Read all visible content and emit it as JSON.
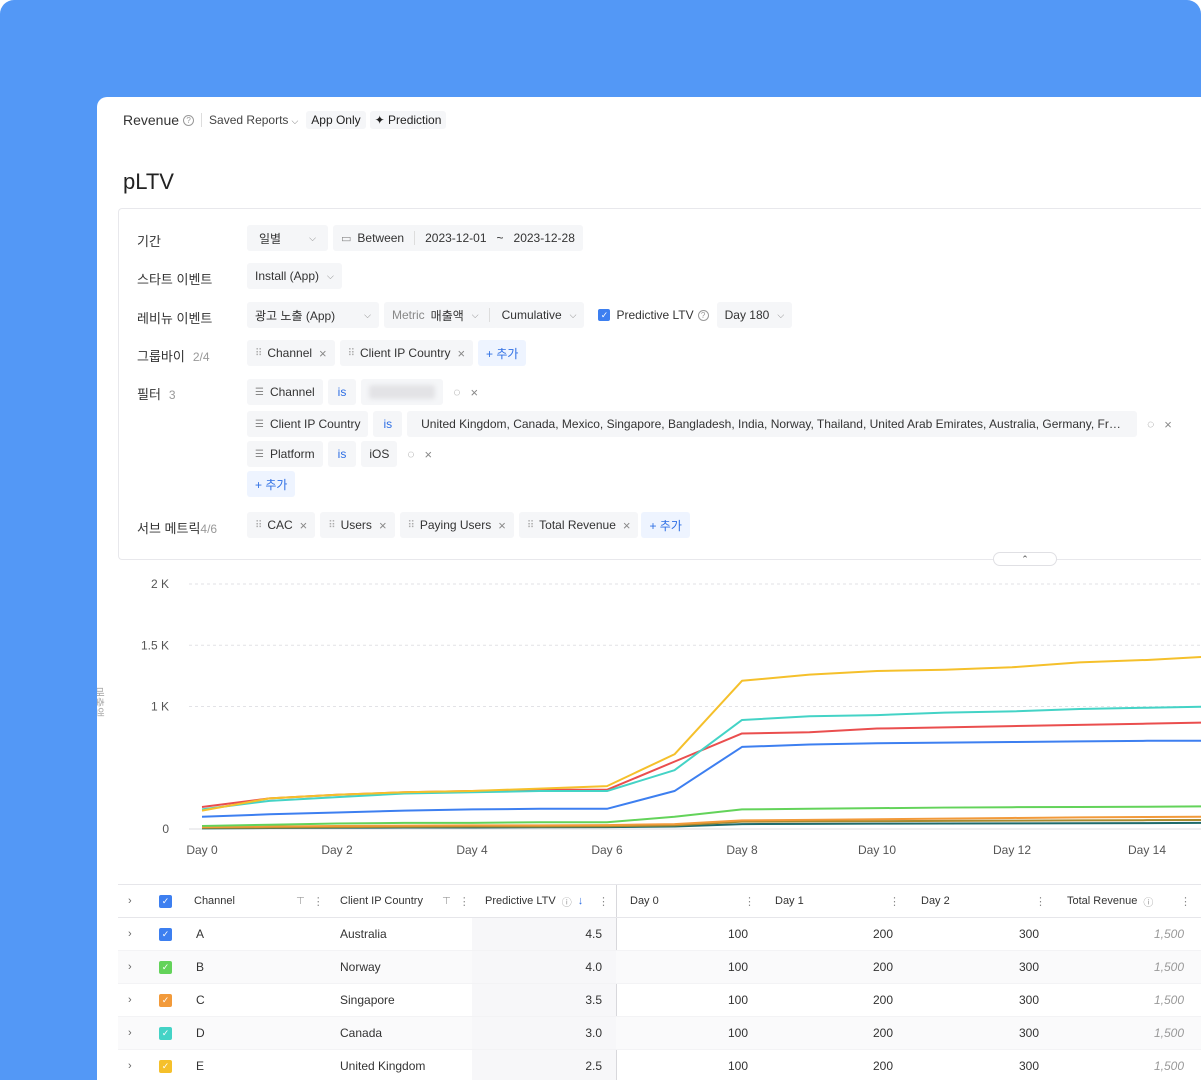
{
  "header": {
    "title": "Revenue",
    "saved_reports": "Saved Reports",
    "app_only": "App Only",
    "prediction": "Prediction"
  },
  "page_title": "pLTV",
  "settings": {
    "period": {
      "label": "기간",
      "granularity": "일별",
      "between": "Between",
      "start": "2023-12-01",
      "tilde": "~",
      "end": "2023-12-28"
    },
    "start_event": {
      "label": "스타트 이벤트",
      "value": "Install (App)"
    },
    "revenue_event": {
      "label": "레비뉴 이벤트",
      "event": "광고 노출 (App)",
      "metric_label": "Metric",
      "metric_value": "매출액",
      "mode": "Cumulative",
      "predictive": "Predictive LTV",
      "day": "Day 180"
    },
    "group_by": {
      "label": "그룹바이",
      "count": "2/4",
      "items": [
        "Channel",
        "Client IP Country"
      ],
      "add": "+ 추가"
    },
    "filter": {
      "label": "필터",
      "count": "3",
      "items": [
        {
          "field": "Channel",
          "op": "is",
          "value": "unattributed"
        },
        {
          "field": "Client IP Country",
          "op": "is",
          "value": "United Kingdom, Canada, Mexico, Singapore, Bangladesh, India, Norway, Thailand, United Arab Emirates, Australia, Germany, France,..."
        },
        {
          "field": "Platform",
          "op": "is",
          "value": "iOS"
        }
      ],
      "add": "+ 추가"
    },
    "sub_metrics": {
      "label": "서브 메트릭",
      "count": "4/6",
      "items": [
        "CAC",
        "Users",
        "Paying Users",
        "Total Revenue"
      ],
      "add": "+ 추가"
    }
  },
  "chart_data": {
    "type": "line",
    "ylabel": "매출액",
    "ylim": [
      0,
      2000
    ],
    "yticks": [
      "0",
      "1 K",
      "1.5 K",
      "2 K"
    ],
    "xticks": [
      "Day 0",
      "Day 2",
      "Day 4",
      "Day 6",
      "Day 8",
      "Day 10",
      "Day 12",
      "Day 14"
    ],
    "x": [
      0,
      1,
      2,
      3,
      4,
      5,
      6,
      7,
      8,
      9,
      10,
      11,
      12,
      13,
      14,
      15
    ],
    "grid": true,
    "series": [
      {
        "color": "#f5c02b",
        "values": [
          150,
          250,
          280,
          300,
          310,
          330,
          350,
          610,
          1210,
          1260,
          1290,
          1300,
          1320,
          1360,
          1380,
          1410
        ]
      },
      {
        "color": "#44d3c6",
        "values": [
          160,
          230,
          260,
          290,
          300,
          310,
          310,
          480,
          890,
          920,
          930,
          950,
          960,
          980,
          990,
          1000
        ]
      },
      {
        "color": "#ea4e4e",
        "values": [
          180,
          250,
          280,
          300,
          310,
          320,
          320,
          550,
          780,
          790,
          820,
          830,
          840,
          850,
          860,
          870
        ]
      },
      {
        "color": "#3d7ff0",
        "values": [
          100,
          120,
          135,
          150,
          160,
          165,
          165,
          310,
          670,
          690,
          700,
          705,
          710,
          715,
          720,
          720
        ]
      },
      {
        "color": "#63d35a",
        "values": [
          25,
          35,
          45,
          50,
          50,
          55,
          55,
          100,
          160,
          165,
          170,
          175,
          178,
          180,
          182,
          185
        ]
      },
      {
        "color": "#f29a3a",
        "values": [
          15,
          20,
          25,
          28,
          30,
          30,
          32,
          40,
          70,
          75,
          80,
          85,
          90,
          95,
          98,
          100
        ]
      },
      {
        "color": "#a98a2e",
        "values": [
          10,
          12,
          15,
          18,
          20,
          20,
          22,
          30,
          60,
          62,
          64,
          66,
          68,
          70,
          72,
          74
        ]
      },
      {
        "color": "#1f6b6b",
        "values": [
          5,
          8,
          10,
          12,
          12,
          14,
          15,
          20,
          40,
          42,
          44,
          45,
          46,
          47,
          48,
          50
        ]
      }
    ]
  },
  "table": {
    "headers": {
      "channel": "Channel",
      "country": "Client IP Country",
      "pltv": "Predictive LTV",
      "day0": "Day 0",
      "day1": "Day 1",
      "day2": "Day 2",
      "total": "Total Revenue"
    },
    "rows": [
      {
        "color": "#3d7ff0",
        "channel": "A",
        "country": "Australia",
        "pltv": "4.5",
        "day0": "100",
        "day1": "200",
        "day2": "300",
        "total": "1,500"
      },
      {
        "color": "#63d35a",
        "channel": "B",
        "country": "Norway",
        "pltv": "4.0",
        "day0": "100",
        "day1": "200",
        "day2": "300",
        "total": "1,500"
      },
      {
        "color": "#f29a3a",
        "channel": "C",
        "country": "Singapore",
        "pltv": "3.5",
        "day0": "100",
        "day1": "200",
        "day2": "300",
        "total": "1,500"
      },
      {
        "color": "#44d3c6",
        "channel": "D",
        "country": "Canada",
        "pltv": "3.0",
        "day0": "100",
        "day1": "200",
        "day2": "300",
        "total": "1,500"
      },
      {
        "color": "#f5c02b",
        "channel": "E",
        "country": "United Kingdom",
        "pltv": "2.5",
        "day0": "100",
        "day1": "200",
        "day2": "300",
        "total": "1,500"
      }
    ]
  }
}
